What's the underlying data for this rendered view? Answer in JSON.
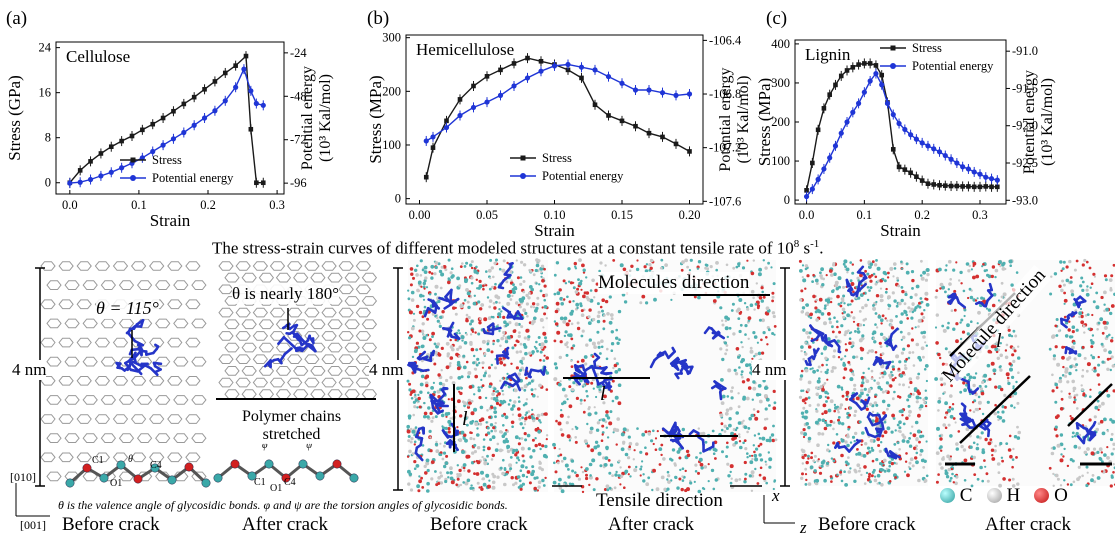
{
  "figure": {
    "caption_top": "The stress-strain curves of different modeled structures at a constant tensile rate of 10",
    "caption_top_sup1": "8",
    "caption_top_tail": " s",
    "caption_top_sup2": "-1",
    "caption_top_end": ".",
    "colors": {
      "stress": "#1a1a1a",
      "energy": "#1f35d6",
      "molecule": "#2535c8",
      "carbon": "#3aa8a8",
      "oxygen": "#d22020",
      "hydrogen": "#d8d8d8"
    }
  },
  "panels": [
    {
      "letter": "(a)",
      "name": "Cellulose",
      "xlabel": "Strain",
      "ylabel": "Stress (GPa)",
      "y2label_1": "Potential energy",
      "y2label_2": "(10³ Kal/mol)",
      "xticks": [
        "0.0",
        "0.1",
        "0.2",
        "0.3"
      ],
      "yticks": [
        "24",
        "16",
        "8",
        "0"
      ],
      "y2ticks": [
        "-24",
        "-48",
        "-72",
        "-96"
      ],
      "legend": [
        "Stress",
        "Potential energy"
      ]
    },
    {
      "letter": "(b)",
      "name": "Hemicellulose",
      "xlabel": "Strain",
      "ylabel": "Stress (MPa)",
      "y2label_1": "Potential energy",
      "y2label_2": "(10³ Kal/mol)",
      "xticks": [
        "0.00",
        "0.05",
        "0.10",
        "0.15",
        "0.20"
      ],
      "yticks": [
        "300",
        "200",
        "100",
        "0"
      ],
      "y2ticks": [
        "-106.4",
        "-106.8",
        "-107.2",
        "-107.6"
      ],
      "legend": [
        "Stress",
        "Potential energy"
      ]
    },
    {
      "letter": "(c)",
      "name": "Lignin",
      "xlabel": "Strain",
      "ylabel": "Stress (MPa)",
      "y2label_1": "Potential energy",
      "y2label_2": "(10³ Kal/mol)",
      "xticks": [
        "0.0",
        "0.1",
        "0.2",
        "0.3"
      ],
      "yticks": [
        "400",
        "300",
        "200",
        "100",
        "0"
      ],
      "y2ticks": [
        "-91.0",
        "-91.5",
        "-92.0",
        "-92.5",
        "-93.0"
      ],
      "legend": [
        "Stress",
        "Potential energy"
      ]
    }
  ],
  "chart_data": [
    {
      "type": "line",
      "title": "Cellulose",
      "xlabel": "Strain",
      "ylabel": "Stress (GPa)",
      "y2label": "Potential energy (10³ Kal/mol)",
      "xlim": [
        -0.02,
        0.31
      ],
      "ylim": [
        -2,
        25
      ],
      "y2lim": [
        -102,
        -18
      ],
      "series": [
        {
          "name": "Stress",
          "axis": "left",
          "x": [
            0,
            0.015,
            0.03,
            0.045,
            0.06,
            0.075,
            0.09,
            0.105,
            0.12,
            0.135,
            0.15,
            0.165,
            0.18,
            0.195,
            0.21,
            0.225,
            0.24,
            0.255,
            0.262,
            0.27,
            0.28
          ],
          "y": [
            0,
            2.2,
            3.8,
            5.2,
            6.4,
            7.4,
            8.3,
            9.4,
            10.4,
            11.5,
            12.7,
            14.0,
            15.2,
            16.6,
            18.0,
            19.5,
            20.8,
            22.5,
            9.5,
            0,
            0
          ]
        },
        {
          "name": "Potential energy",
          "axis": "right",
          "x": [
            0,
            0.015,
            0.03,
            0.045,
            0.06,
            0.075,
            0.09,
            0.105,
            0.12,
            0.135,
            0.15,
            0.165,
            0.18,
            0.195,
            0.21,
            0.225,
            0.24,
            0.252,
            0.262,
            0.27,
            0.28
          ],
          "y": [
            -96,
            -95.5,
            -94,
            -92,
            -90,
            -87.5,
            -85,
            -82,
            -78.5,
            -75,
            -71.5,
            -68,
            -64,
            -60,
            -56,
            -50.5,
            -43,
            -33,
            -45,
            -52,
            -53
          ]
        }
      ]
    },
    {
      "type": "line",
      "title": "Hemicellulose",
      "xlabel": "Strain",
      "ylabel": "Stress (MPa)",
      "y2label": "Potential energy (10³ Kal/mol)",
      "xlim": [
        -0.01,
        0.21
      ],
      "ylim": [
        -10,
        305
      ],
      "y2lim": [
        -107.62,
        -106.36
      ],
      "series": [
        {
          "name": "Stress",
          "axis": "left",
          "x": [
            0.005,
            0.01,
            0.02,
            0.03,
            0.04,
            0.05,
            0.06,
            0.07,
            0.08,
            0.09,
            0.1,
            0.11,
            0.12,
            0.13,
            0.14,
            0.15,
            0.16,
            0.17,
            0.18,
            0.19,
            0.2
          ],
          "y": [
            40,
            95,
            145,
            185,
            210,
            228,
            240,
            252,
            262,
            256,
            250,
            240,
            225,
            175,
            155,
            145,
            135,
            122,
            115,
            102,
            88
          ]
        },
        {
          "name": "Potential energy",
          "axis": "right",
          "x": [
            0.005,
            0.01,
            0.02,
            0.03,
            0.04,
            0.05,
            0.06,
            0.07,
            0.08,
            0.09,
            0.1,
            0.11,
            0.12,
            0.13,
            0.14,
            0.15,
            0.16,
            0.17,
            0.18,
            0.19,
            0.2
          ],
          "y": [
            -107.15,
            -107.12,
            -107.05,
            -106.96,
            -106.9,
            -106.86,
            -106.81,
            -106.74,
            -106.68,
            -106.63,
            -106.59,
            -106.58,
            -106.6,
            -106.62,
            -106.67,
            -106.72,
            -106.77,
            -106.77,
            -106.79,
            -106.81,
            -106.8
          ]
        }
      ]
    },
    {
      "type": "line",
      "title": "Lignin",
      "xlabel": "Strain",
      "ylabel": "Stress (MPa)",
      "y2label": "Potential energy (10³ Kal/mol)",
      "xlim": [
        -0.02,
        0.345
      ],
      "ylim": [
        -10,
        410
      ],
      "y2lim": [
        -93.05,
        -90.85
      ],
      "series": [
        {
          "name": "Stress",
          "axis": "left",
          "x": [
            0.0,
            0.01,
            0.02,
            0.03,
            0.04,
            0.05,
            0.06,
            0.07,
            0.08,
            0.09,
            0.1,
            0.11,
            0.12,
            0.13,
            0.14,
            0.15,
            0.16,
            0.17,
            0.18,
            0.19,
            0.2,
            0.21,
            0.22,
            0.23,
            0.24,
            0.25,
            0.26,
            0.27,
            0.28,
            0.29,
            0.3,
            0.31,
            0.32,
            0.33
          ],
          "y": [
            25,
            95,
            180,
            235,
            270,
            295,
            318,
            332,
            340,
            347,
            350,
            350,
            345,
            320,
            250,
            130,
            85,
            78,
            70,
            60,
            50,
            42,
            40,
            38,
            37,
            36,
            36,
            35,
            35,
            34,
            34,
            35,
            34,
            34
          ]
        },
        {
          "name": "Potential energy",
          "axis": "right",
          "x": [
            0.0,
            0.01,
            0.02,
            0.03,
            0.04,
            0.05,
            0.06,
            0.07,
            0.08,
            0.09,
            0.1,
            0.11,
            0.12,
            0.13,
            0.14,
            0.15,
            0.16,
            0.17,
            0.18,
            0.19,
            0.2,
            0.21,
            0.22,
            0.23,
            0.24,
            0.25,
            0.26,
            0.27,
            0.28,
            0.29,
            0.3,
            0.31,
            0.32,
            0.33
          ],
          "y": [
            -92.95,
            -92.85,
            -92.72,
            -92.58,
            -92.43,
            -92.27,
            -92.1,
            -91.95,
            -91.82,
            -91.7,
            -91.55,
            -91.4,
            -91.3,
            -91.45,
            -91.7,
            -91.85,
            -91.97,
            -92.05,
            -92.12,
            -92.18,
            -92.23,
            -92.27,
            -92.31,
            -92.35,
            -92.4,
            -92.45,
            -92.5,
            -92.55,
            -92.58,
            -92.62,
            -92.65,
            -92.69,
            -92.71,
            -92.73
          ]
        }
      ]
    }
  ],
  "bottom": {
    "nm_label": "4 nm",
    "theta115": "θ = 115°",
    "theta180": "θ is nearly 180°",
    "polymer_1": "Polymer chains",
    "polymer_2": "stretched",
    "axis_010": "[010]",
    "axis_001": "[001]",
    "note": "θ is the valence angle of glycosidic bonds. φ and ψ are the torsion angles of glycosidic bonds.",
    "before_crack": "Before crack",
    "after_crack": "After crack",
    "molecules_direction": "Molecules direction",
    "molecule_direction": "Molecule direction",
    "l": "l",
    "tensile_direction": "Tensile direction",
    "x": "x",
    "z": "z",
    "atoms": [
      "C",
      "H",
      "O"
    ],
    "chain_labels": {
      "c1": "C1",
      "c4": "C4",
      "o1": "O1",
      "theta": "θ",
      "phi": "φ",
      "psi": "ψ"
    }
  }
}
